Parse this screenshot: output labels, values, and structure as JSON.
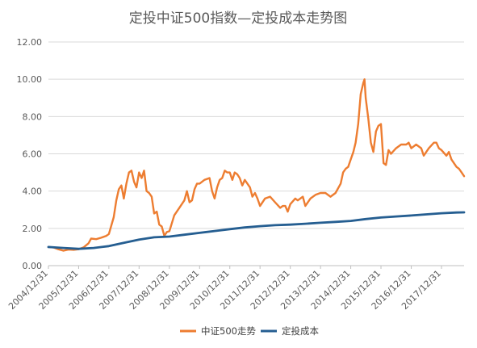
{
  "chart_data": {
    "type": "line",
    "title": "定投中证500指数—定投成本走势图",
    "xlabel": "",
    "ylabel": "",
    "ylim": [
      0,
      12
    ],
    "yticks": [
      "0.00",
      "2.00",
      "4.00",
      "6.00",
      "8.00",
      "10.00",
      "12.00"
    ],
    "xlim": [
      "2004-12-31",
      "2018-09-30"
    ],
    "xtick_labels": [
      "2004/12/31",
      "2005/12/31",
      "2006/12/31",
      "2007/12/31",
      "2008/12/31",
      "2009/12/31",
      "2010/12/31",
      "2011/12/31",
      "2012/12/31",
      "2013/12/31",
      "2014/12/31",
      "2015/12/31",
      "2016/12/31",
      "2017/12/31"
    ],
    "xtick_dates": [
      "2004-12-31",
      "2005-12-31",
      "2006-12-31",
      "2007-12-31",
      "2008-12-31",
      "2009-12-31",
      "2010-12-31",
      "2011-12-31",
      "2012-12-31",
      "2013-12-31",
      "2014-12-31",
      "2015-12-31",
      "2016-12-31",
      "2017-12-31"
    ],
    "grid": "horizontal",
    "legend": "bottom",
    "series": [
      {
        "name": "中证500走势",
        "color": "#ed7d31",
        "points": [
          [
            "2004-12-31",
            1.0
          ],
          [
            "2005-02-28",
            0.98
          ],
          [
            "2005-04-30",
            0.88
          ],
          [
            "2005-06-30",
            0.8
          ],
          [
            "2005-08-31",
            0.86
          ],
          [
            "2005-10-31",
            0.85
          ],
          [
            "2005-12-31",
            0.88
          ],
          [
            "2006-02-28",
            0.98
          ],
          [
            "2006-04-30",
            1.2
          ],
          [
            "2006-05-31",
            1.45
          ],
          [
            "2006-07-31",
            1.42
          ],
          [
            "2006-09-30",
            1.5
          ],
          [
            "2006-11-30",
            1.6
          ],
          [
            "2006-12-31",
            1.7
          ],
          [
            "2007-02-28",
            2.6
          ],
          [
            "2007-03-31",
            3.5
          ],
          [
            "2007-04-30",
            4.1
          ],
          [
            "2007-05-31",
            4.3
          ],
          [
            "2007-06-30",
            3.6
          ],
          [
            "2007-07-31",
            4.4
          ],
          [
            "2007-08-31",
            5.0
          ],
          [
            "2007-09-30",
            5.1
          ],
          [
            "2007-10-31",
            4.5
          ],
          [
            "2007-11-30",
            4.2
          ],
          [
            "2007-12-31",
            5.0
          ],
          [
            "2008-01-31",
            4.7
          ],
          [
            "2008-02-29",
            5.1
          ],
          [
            "2008-03-31",
            4.0
          ],
          [
            "2008-04-30",
            3.9
          ],
          [
            "2008-05-31",
            3.7
          ],
          [
            "2008-06-30",
            2.8
          ],
          [
            "2008-07-31",
            2.9
          ],
          [
            "2008-08-31",
            2.2
          ],
          [
            "2008-09-30",
            2.1
          ],
          [
            "2008-10-31",
            1.6
          ],
          [
            "2008-11-30",
            1.8
          ],
          [
            "2008-12-31",
            1.85
          ],
          [
            "2009-02-28",
            2.7
          ],
          [
            "2009-04-30",
            3.1
          ],
          [
            "2009-06-30",
            3.5
          ],
          [
            "2009-07-31",
            4.0
          ],
          [
            "2009-08-31",
            3.4
          ],
          [
            "2009-09-30",
            3.5
          ],
          [
            "2009-10-31",
            4.1
          ],
          [
            "2009-11-30",
            4.4
          ],
          [
            "2009-12-31",
            4.4
          ],
          [
            "2010-02-28",
            4.6
          ],
          [
            "2010-04-30",
            4.7
          ],
          [
            "2010-05-31",
            4.0
          ],
          [
            "2010-06-30",
            3.6
          ],
          [
            "2010-07-31",
            4.2
          ],
          [
            "2010-08-31",
            4.6
          ],
          [
            "2010-09-30",
            4.7
          ],
          [
            "2010-10-31",
            5.1
          ],
          [
            "2010-11-30",
            5.0
          ],
          [
            "2010-12-31",
            5.0
          ],
          [
            "2011-01-31",
            4.6
          ],
          [
            "2011-02-28",
            5.0
          ],
          [
            "2011-03-31",
            4.9
          ],
          [
            "2011-04-30",
            4.7
          ],
          [
            "2011-05-31",
            4.3
          ],
          [
            "2011-06-30",
            4.6
          ],
          [
            "2011-07-31",
            4.4
          ],
          [
            "2011-08-31",
            4.2
          ],
          [
            "2011-09-30",
            3.7
          ],
          [
            "2011-10-31",
            3.9
          ],
          [
            "2011-11-30",
            3.6
          ],
          [
            "2011-12-31",
            3.2
          ],
          [
            "2012-02-29",
            3.6
          ],
          [
            "2012-04-30",
            3.7
          ],
          [
            "2012-06-30",
            3.4
          ],
          [
            "2012-08-31",
            3.1
          ],
          [
            "2012-09-30",
            3.2
          ],
          [
            "2012-10-31",
            3.2
          ],
          [
            "2012-11-30",
            2.9
          ],
          [
            "2012-12-31",
            3.3
          ],
          [
            "2013-02-28",
            3.6
          ],
          [
            "2013-03-31",
            3.5
          ],
          [
            "2013-05-31",
            3.7
          ],
          [
            "2013-06-30",
            3.2
          ],
          [
            "2013-08-31",
            3.6
          ],
          [
            "2013-10-31",
            3.8
          ],
          [
            "2013-12-31",
            3.9
          ],
          [
            "2014-02-28",
            3.9
          ],
          [
            "2014-04-30",
            3.7
          ],
          [
            "2014-06-30",
            3.9
          ],
          [
            "2014-08-31",
            4.4
          ],
          [
            "2014-09-30",
            5.0
          ],
          [
            "2014-10-31",
            5.2
          ],
          [
            "2014-11-30",
            5.3
          ],
          [
            "2014-12-31",
            5.7
          ],
          [
            "2015-01-31",
            6.1
          ],
          [
            "2015-02-28",
            6.6
          ],
          [
            "2015-03-31",
            7.6
          ],
          [
            "2015-04-30",
            9.2
          ],
          [
            "2015-05-31",
            9.8
          ],
          [
            "2015-06-15",
            10.0
          ],
          [
            "2015-06-30",
            9.0
          ],
          [
            "2015-07-31",
            7.9
          ],
          [
            "2015-08-31",
            6.6
          ],
          [
            "2015-09-30",
            6.1
          ],
          [
            "2015-10-31",
            7.2
          ],
          [
            "2015-11-30",
            7.5
          ],
          [
            "2015-12-31",
            7.6
          ],
          [
            "2016-01-31",
            5.5
          ],
          [
            "2016-02-29",
            5.4
          ],
          [
            "2016-03-31",
            6.2
          ],
          [
            "2016-04-30",
            6.0
          ],
          [
            "2016-06-30",
            6.3
          ],
          [
            "2016-08-31",
            6.5
          ],
          [
            "2016-10-31",
            6.5
          ],
          [
            "2016-11-30",
            6.6
          ],
          [
            "2016-12-31",
            6.3
          ],
          [
            "2017-02-28",
            6.5
          ],
          [
            "2017-04-30",
            6.3
          ],
          [
            "2017-05-31",
            5.9
          ],
          [
            "2017-07-31",
            6.3
          ],
          [
            "2017-09-30",
            6.6
          ],
          [
            "2017-10-31",
            6.6
          ],
          [
            "2017-11-30",
            6.3
          ],
          [
            "2017-12-31",
            6.2
          ],
          [
            "2018-02-28",
            5.9
          ],
          [
            "2018-03-31",
            6.1
          ],
          [
            "2018-04-30",
            5.7
          ],
          [
            "2018-06-30",
            5.3
          ],
          [
            "2018-07-31",
            5.2
          ],
          [
            "2018-08-31",
            5.0
          ],
          [
            "2018-09-30",
            4.8
          ]
        ]
      },
      {
        "name": "定投成本",
        "color": "#255e91",
        "points": [
          [
            "2004-12-31",
            1.0
          ],
          [
            "2005-06-30",
            0.95
          ],
          [
            "2005-12-31",
            0.9
          ],
          [
            "2006-06-30",
            0.95
          ],
          [
            "2006-12-31",
            1.05
          ],
          [
            "2007-06-30",
            1.22
          ],
          [
            "2007-12-31",
            1.4
          ],
          [
            "2008-06-30",
            1.52
          ],
          [
            "2008-12-31",
            1.56
          ],
          [
            "2009-06-30",
            1.66
          ],
          [
            "2009-12-31",
            1.76
          ],
          [
            "2010-06-30",
            1.86
          ],
          [
            "2010-12-31",
            1.96
          ],
          [
            "2011-06-30",
            2.05
          ],
          [
            "2011-12-31",
            2.12
          ],
          [
            "2012-06-30",
            2.17
          ],
          [
            "2012-12-31",
            2.2
          ],
          [
            "2013-06-30",
            2.25
          ],
          [
            "2013-12-31",
            2.3
          ],
          [
            "2014-06-30",
            2.35
          ],
          [
            "2014-12-31",
            2.4
          ],
          [
            "2015-06-30",
            2.5
          ],
          [
            "2015-12-31",
            2.58
          ],
          [
            "2016-06-30",
            2.64
          ],
          [
            "2016-12-31",
            2.69
          ],
          [
            "2017-06-30",
            2.75
          ],
          [
            "2017-12-31",
            2.81
          ],
          [
            "2018-06-30",
            2.85
          ],
          [
            "2018-09-30",
            2.86
          ]
        ]
      }
    ]
  }
}
